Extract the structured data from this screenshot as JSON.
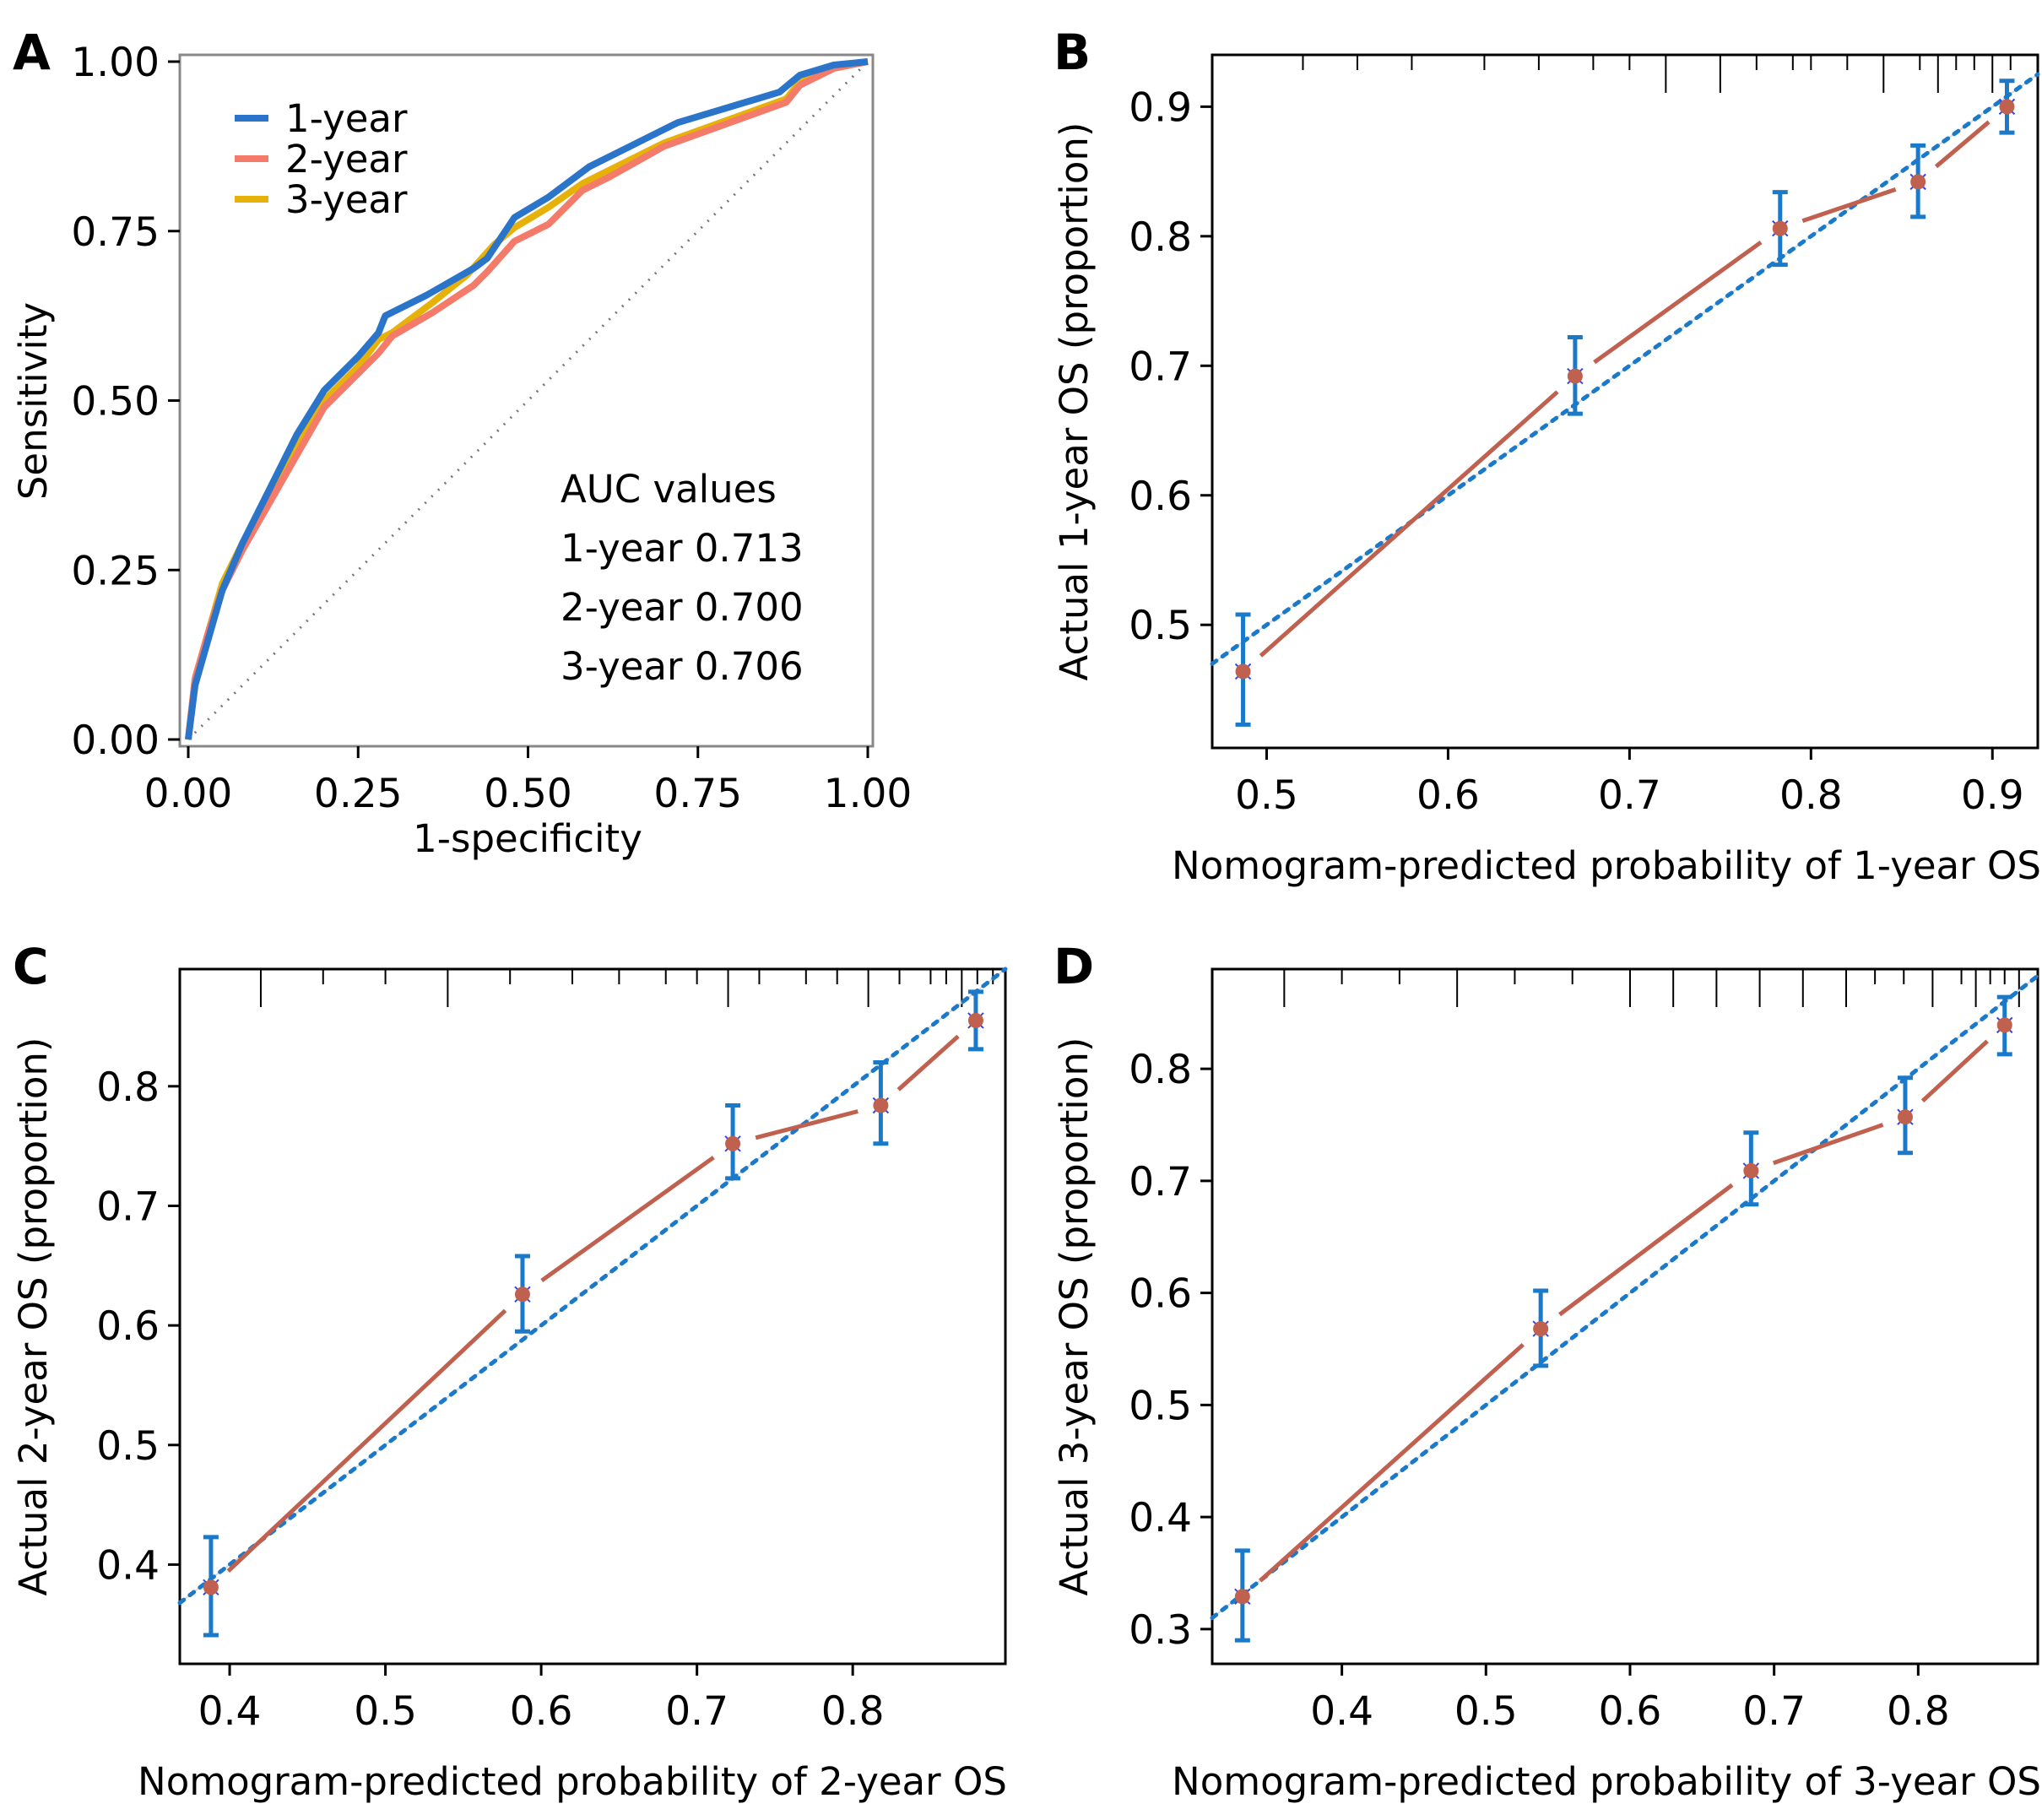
{
  "chart_data": [
    {
      "panel": "A",
      "type": "line",
      "xlabel": "1-specificity",
      "ylabel": "Sensitivity",
      "xlim": [
        0,
        1
      ],
      "ylim": [
        0,
        1
      ],
      "xticks": [
        "0.00",
        "0.25",
        "0.50",
        "0.75",
        "1.00"
      ],
      "yticks": [
        "0.00",
        "0.25",
        "0.50",
        "0.75",
        "1.00"
      ],
      "legend_position": "top-left",
      "reference_line": "diagonal dotted grey",
      "series": [
        {
          "name": "1-year",
          "color": "#2a74c9",
          "x": [
            0,
            0.01,
            0.03,
            0.05,
            0.08,
            0.12,
            0.16,
            0.2,
            0.25,
            0.28,
            0.29,
            0.35,
            0.42,
            0.44,
            0.48,
            0.53,
            0.59,
            0.65,
            0.72,
            0.87,
            0.9,
            0.95,
            1
          ],
          "y": [
            0,
            0.08,
            0.15,
            0.22,
            0.29,
            0.37,
            0.45,
            0.515,
            0.565,
            0.6,
            0.625,
            0.655,
            0.695,
            0.71,
            0.77,
            0.8,
            0.845,
            0.875,
            0.91,
            0.955,
            0.98,
            0.995,
            1
          ]
        },
        {
          "name": "2-year",
          "color": "#f47a6a",
          "x": [
            0,
            0.01,
            0.03,
            0.05,
            0.08,
            0.12,
            0.16,
            0.2,
            0.25,
            0.28,
            0.3,
            0.36,
            0.42,
            0.44,
            0.48,
            0.53,
            0.58,
            0.62,
            0.7,
            0.88,
            0.9,
            0.95,
            1
          ],
          "y": [
            0,
            0.09,
            0.16,
            0.22,
            0.28,
            0.35,
            0.42,
            0.49,
            0.54,
            0.57,
            0.595,
            0.63,
            0.67,
            0.69,
            0.735,
            0.76,
            0.81,
            0.83,
            0.875,
            0.94,
            0.965,
            0.99,
            1
          ]
        },
        {
          "name": "3-year",
          "color": "#e6b20a",
          "x": [
            0,
            0.01,
            0.03,
            0.05,
            0.08,
            0.12,
            0.16,
            0.2,
            0.25,
            0.28,
            0.3,
            0.36,
            0.41,
            0.45,
            0.48,
            0.53,
            0.58,
            0.62,
            0.7,
            0.88,
            0.9,
            0.95,
            1
          ],
          "y": [
            0,
            0.09,
            0.16,
            0.23,
            0.29,
            0.36,
            0.43,
            0.5,
            0.55,
            0.59,
            0.6,
            0.645,
            0.685,
            0.73,
            0.755,
            0.785,
            0.82,
            0.84,
            0.88,
            0.945,
            0.97,
            0.99,
            1
          ]
        }
      ],
      "annotation": {
        "title": "AUC values",
        "lines": [
          "1-year 0.713",
          "2-year 0.700",
          "3-year 0.706"
        ]
      }
    },
    {
      "panel": "B",
      "type": "scatter",
      "xlabel": "Nomogram-predicted probability of 1-year OS",
      "ylabel": "Actual 1-year OS (proportion)",
      "xlim": [
        0.47,
        0.925
      ],
      "ylim": [
        0.405,
        0.94
      ],
      "xticks": [
        "0.5",
        "0.6",
        "0.7",
        "0.8",
        "0.9"
      ],
      "yticks": [
        "0.5",
        "0.6",
        "0.7",
        "0.8",
        "0.9"
      ],
      "points": [
        {
          "x": 0.487,
          "y": 0.464,
          "lo": 0.423,
          "hi": 0.508
        },
        {
          "x": 0.67,
          "y": 0.692,
          "lo": 0.663,
          "hi": 0.722
        },
        {
          "x": 0.783,
          "y": 0.806,
          "lo": 0.778,
          "hi": 0.834
        },
        {
          "x": 0.859,
          "y": 0.842,
          "lo": 0.815,
          "hi": 0.87
        },
        {
          "x": 0.908,
          "y": 0.9,
          "lo": 0.88,
          "hi": 0.92
        }
      ],
      "rug": [
        0.52,
        0.55,
        0.58,
        0.62,
        0.65,
        0.68,
        0.7,
        0.72,
        0.75,
        0.77,
        0.79,
        0.8,
        0.82,
        0.84,
        0.86,
        0.87,
        0.88,
        0.89,
        0.9,
        0.91
      ]
    },
    {
      "panel": "C",
      "type": "scatter",
      "xlabel": "Nomogram-predicted probability of 2-year OS",
      "ylabel": "Actual 2-year OS (proportion)",
      "xlim": [
        0.368,
        0.898
      ],
      "ylim": [
        0.317,
        0.898
      ],
      "xticks": [
        "0.4",
        "0.5",
        "0.6",
        "0.7",
        "0.8"
      ],
      "yticks": [
        "0.4",
        "0.5",
        "0.6",
        "0.7",
        "0.8"
      ],
      "points": [
        {
          "x": 0.388,
          "y": 0.381,
          "lo": 0.341,
          "hi": 0.423
        },
        {
          "x": 0.588,
          "y": 0.626,
          "lo": 0.595,
          "hi": 0.658
        },
        {
          "x": 0.723,
          "y": 0.752,
          "lo": 0.723,
          "hi": 0.784
        },
        {
          "x": 0.818,
          "y": 0.784,
          "lo": 0.752,
          "hi": 0.82
        },
        {
          "x": 0.879,
          "y": 0.855,
          "lo": 0.831,
          "hi": 0.879
        }
      ],
      "rug": [
        0.42,
        0.46,
        0.5,
        0.54,
        0.58,
        0.62,
        0.65,
        0.68,
        0.7,
        0.72,
        0.74,
        0.77,
        0.79,
        0.81,
        0.83,
        0.85,
        0.86,
        0.87,
        0.88,
        0.89
      ]
    },
    {
      "panel": "D",
      "type": "scatter",
      "xlabel": "Nomogram-predicted probability of 3-year OS",
      "ylabel": "Actual 3-year OS (proportion)",
      "xlim": [
        0.31,
        0.883
      ],
      "ylim": [
        0.269,
        0.889
      ],
      "xticks": [
        "0.4",
        "0.5",
        "0.6",
        "0.7",
        "0.8"
      ],
      "yticks": [
        "0.3",
        "0.4",
        "0.5",
        "0.6",
        "0.7",
        "0.8"
      ],
      "points": [
        {
          "x": 0.331,
          "y": 0.329,
          "lo": 0.29,
          "hi": 0.37
        },
        {
          "x": 0.538,
          "y": 0.568,
          "lo": 0.535,
          "hi": 0.602
        },
        {
          "x": 0.684,
          "y": 0.709,
          "lo": 0.679,
          "hi": 0.743
        },
        {
          "x": 0.791,
          "y": 0.757,
          "lo": 0.725,
          "hi": 0.792
        },
        {
          "x": 0.86,
          "y": 0.839,
          "lo": 0.813,
          "hi": 0.864
        }
      ],
      "rug": [
        0.36,
        0.4,
        0.44,
        0.48,
        0.52,
        0.56,
        0.6,
        0.63,
        0.66,
        0.69,
        0.72,
        0.75,
        0.77,
        0.79,
        0.81,
        0.83,
        0.84,
        0.85,
        0.86,
        0.87
      ]
    }
  ],
  "colors": {
    "observed_line": "#c0604f",
    "ideal_line": "#1a7ac9",
    "errorbar": "#1a7ac9",
    "point": "#c0604f",
    "diagonal": "#888888"
  }
}
